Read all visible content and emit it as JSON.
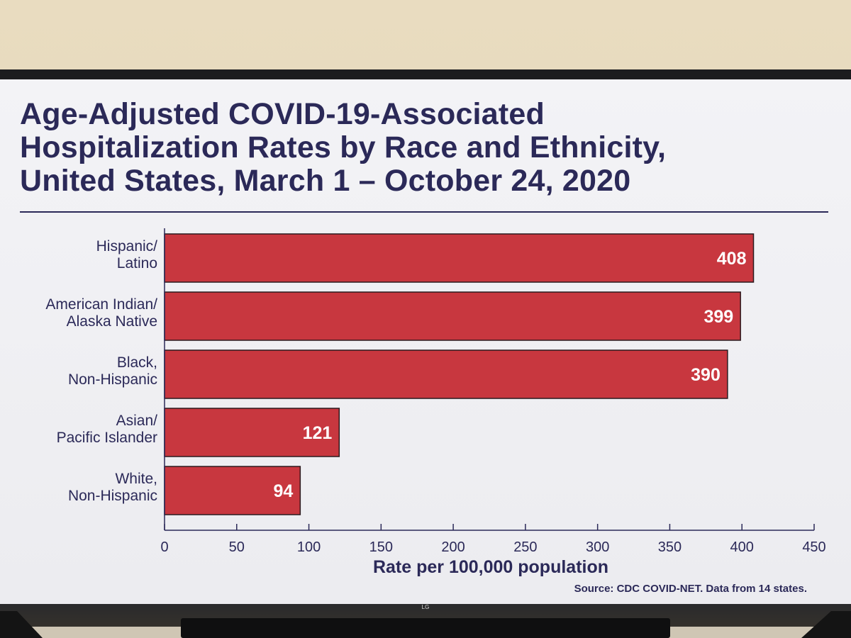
{
  "chart_data": {
    "type": "bar",
    "orientation": "horizontal",
    "title_lines": [
      "Age-Adjusted COVID-19-Associated",
      "Hospitalization Rates by Race and Ethnicity,",
      "United States, March 1 – October 24, 2020"
    ],
    "categories": [
      [
        "Hispanic/",
        "Latino"
      ],
      [
        "American Indian/",
        "Alaska Native"
      ],
      [
        "Black,",
        "Non-Hispanic"
      ],
      [
        "Asian/",
        "Pacific Islander"
      ],
      [
        "White,",
        "Non-Hispanic"
      ]
    ],
    "values": [
      408,
      399,
      390,
      121,
      94
    ],
    "data_labels": [
      "408",
      "399",
      "390",
      "121",
      "94"
    ],
    "xlabel": "Rate per 100,000 population",
    "xlim": [
      0,
      450
    ],
    "xticks": [
      0,
      50,
      100,
      150,
      200,
      250,
      300,
      350,
      400,
      450
    ],
    "xtick_labels": [
      "0",
      "50",
      "100",
      "150",
      "200",
      "250",
      "300",
      "350",
      "400",
      "450"
    ],
    "grid": false,
    "source": "Source: CDC COVID-NET. Data from 14 states.",
    "colors": {
      "bar": "#c8373f",
      "bar_border": "#2b1a1e",
      "text": "#2b2958",
      "label_text": "#ffffff"
    }
  },
  "tv": {
    "logo": "LG"
  }
}
